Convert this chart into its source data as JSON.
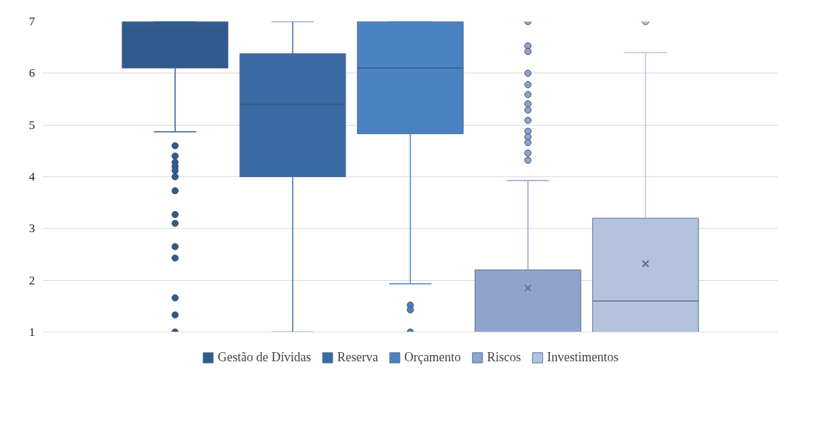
{
  "chart_data": {
    "type": "box",
    "categories": [
      null
    ],
    "ylim": [
      1,
      7
    ],
    "yticks": [
      1,
      2,
      3,
      4,
      5,
      6,
      7
    ],
    "grid": "y",
    "legend": "bottom",
    "tick_labels": "y",
    "series": [
      {
        "name": "Gestão de Dívidas",
        "color": "#2f5b8f",
        "boxes": [
          {
            "low": 4.87,
            "q1": 6.1,
            "median": 6.8,
            "q3": 7,
            "high": 7,
            "outliers": [
              4.6,
              4.4,
              4.28,
              4.2,
              4.12,
              4.0,
              3.73,
              3.27,
              3.1,
              2.65,
              2.43,
              1.66,
              1.33,
              1.0
            ]
          }
        ]
      },
      {
        "name": "Reserva",
        "color": "#3a6aa3",
        "boxes": [
          {
            "low": 1,
            "q1": 4.0,
            "median": 5.4,
            "q3": 6.38,
            "high": 7
          }
        ]
      },
      {
        "name": "Orçamento",
        "color": "#4a82c2",
        "boxes": [
          {
            "low": 1.93,
            "q1": 4.83,
            "median": 6.1,
            "q3": 7,
            "high": 7,
            "outliers": [
              1.52,
              1.43,
              1.0
            ]
          }
        ]
      },
      {
        "name": "Riscos",
        "color": "#8ea4cc",
        "boxes": [
          {
            "low": 1,
            "q1": 1,
            "median": 1,
            "q3": 2.2,
            "high": 3.93,
            "mean": 1.85,
            "outliers": [
              7.0,
              6.53,
              6.42,
              6.0,
              5.78,
              5.59,
              5.41,
              5.29,
              5.09,
              4.88,
              4.77,
              4.66,
              4.46,
              4.32
            ]
          }
        ]
      },
      {
        "name": "Investimentos",
        "color": "#b4c3dd",
        "boxes": [
          {
            "low": 1,
            "q1": 1,
            "median": 1.6,
            "q3": 3.2,
            "high": 6.4,
            "mean": 2.32,
            "outliers": [
              7.0
            ]
          }
        ]
      }
    ]
  }
}
